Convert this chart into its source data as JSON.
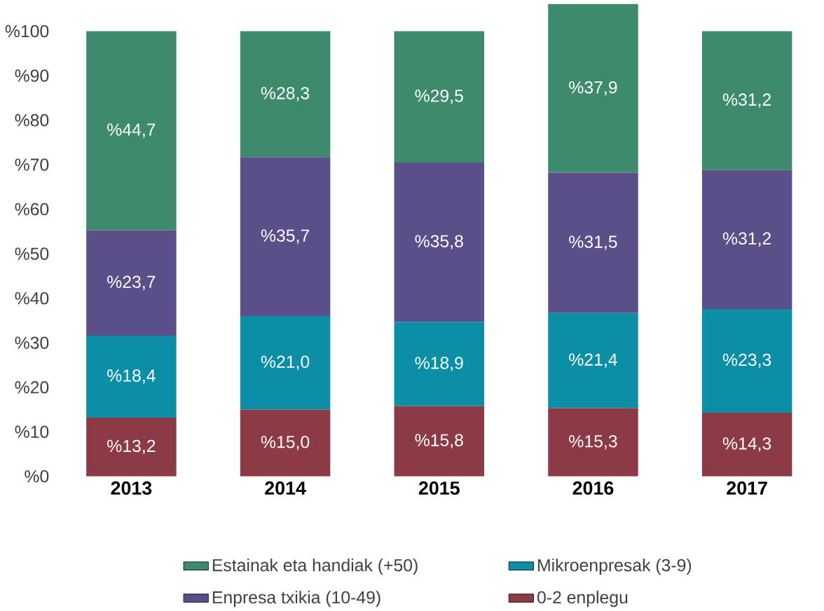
{
  "chart_data": {
    "type": "bar",
    "stacked": true,
    "categories": [
      "2013",
      "2014",
      "2015",
      "2016",
      "2017"
    ],
    "series": [
      {
        "name": "0-2 enplegu",
        "color": "#8c3a45",
        "values": [
          13.2,
          15.0,
          15.8,
          15.3,
          14.3
        ],
        "value_labels": [
          "%13,2",
          "%15,0",
          "%15,8",
          "%15,3",
          "%14,3"
        ]
      },
      {
        "name": "Mikroenpresak (3-9)",
        "color": "#0b8ea6",
        "values": [
          18.4,
          21.0,
          18.9,
          21.4,
          23.3
        ],
        "value_labels": [
          "%18,4",
          "%21,0",
          "%18,9",
          "%21,4",
          "%23,3"
        ]
      },
      {
        "name": "Enpresa txikia (10-49)",
        "color": "#5a4f89",
        "values": [
          23.7,
          35.7,
          35.8,
          31.5,
          31.2
        ],
        "value_labels": [
          "%23,7",
          "%35,7",
          "%35,8",
          "%31,5",
          "%31,2"
        ]
      },
      {
        "name": "Estainak eta handiak (+50)",
        "color": "#3e8a6d",
        "values": [
          44.7,
          28.3,
          29.5,
          37.9,
          31.2
        ],
        "value_labels": [
          "%44,7",
          "%28,3",
          "%29,5",
          "%37,9",
          "%31,2"
        ]
      }
    ],
    "ylim": [
      0,
      107
    ],
    "yticks": [
      {
        "value": 0,
        "label": "%0"
      },
      {
        "value": 10,
        "label": "%10"
      },
      {
        "value": 20,
        "label": "%20"
      },
      {
        "value": 30,
        "label": "%30"
      },
      {
        "value": 40,
        "label": "%40"
      },
      {
        "value": 50,
        "label": "%50"
      },
      {
        "value": 60,
        "label": "%60"
      },
      {
        "value": 70,
        "label": "%70"
      },
      {
        "value": 80,
        "label": "%80"
      },
      {
        "value": 90,
        "label": "%90"
      },
      {
        "value": 100,
        "label": "%100"
      }
    ],
    "legend": "bottom"
  }
}
